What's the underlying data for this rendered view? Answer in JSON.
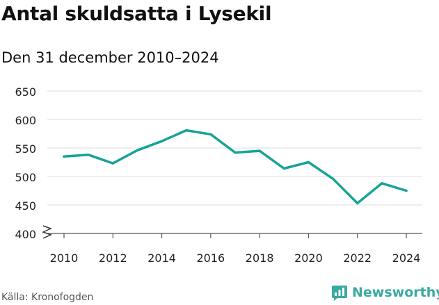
{
  "header": {
    "title": "Antal skuldsatta i Lysekil",
    "subtitle": "Den 31 december 2010–2024"
  },
  "footer": {
    "source": "Källa: Kronofogden",
    "brand": "Newsworthy"
  },
  "colors": {
    "line": "#17a398",
    "grid": "#dcdcdc",
    "brand": "#3aa99f"
  },
  "chart_data": {
    "type": "line",
    "title": "Antal skuldsatta i Lysekil",
    "subtitle": "Den 31 december 2010–2024",
    "xlabel": "",
    "ylabel": "",
    "x": [
      2010,
      2011,
      2012,
      2013,
      2014,
      2015,
      2016,
      2017,
      2018,
      2019,
      2020,
      2021,
      2022,
      2023,
      2024
    ],
    "values": [
      535,
      538,
      523,
      546,
      562,
      581,
      574,
      542,
      545,
      514,
      525,
      496,
      453,
      488,
      475
    ],
    "ylim": [
      400,
      650
    ],
    "yticks": [
      400,
      450,
      500,
      550,
      600,
      650
    ],
    "xticks": [
      2010,
      2012,
      2014,
      2016,
      2018,
      2020,
      2022,
      2024
    ],
    "axis_break": true,
    "grid": true
  }
}
